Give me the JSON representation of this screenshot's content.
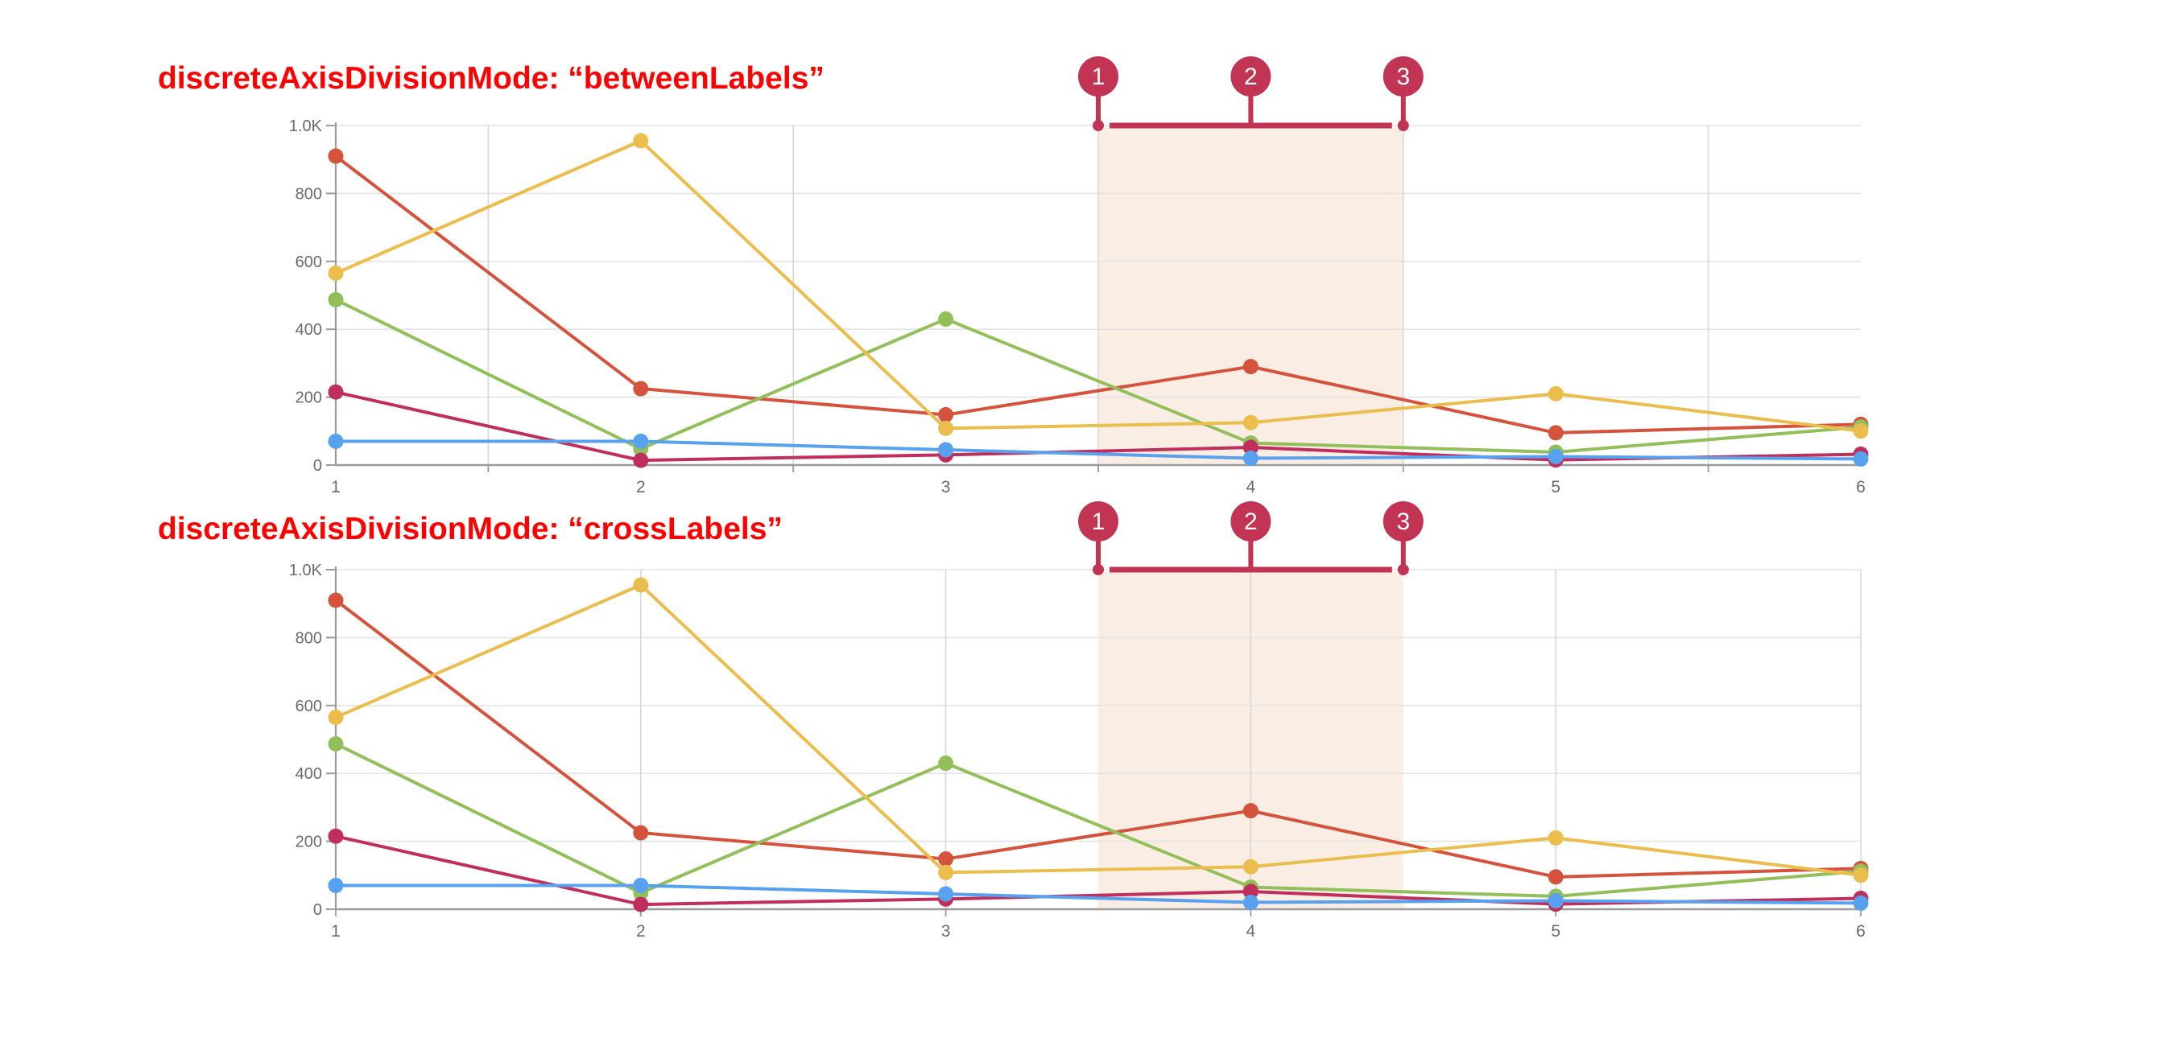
{
  "page": {
    "background": "#ffffff"
  },
  "charts": [
    {
      "key": "betweenLabels",
      "title": "discreteAxisDivisionMode: “betweenLabels”",
      "mode": "betweenLabels",
      "markers": [
        {
          "label": "1",
          "x": 3.5
        },
        {
          "label": "2",
          "x": 4
        },
        {
          "label": "3",
          "x": 4.5
        }
      ]
    },
    {
      "key": "crossLabels",
      "title": "discreteAxisDivisionMode: “crossLabels”",
      "mode": "crossLabels",
      "markers": [
        {
          "label": "1",
          "x": 3.5
        },
        {
          "label": "2",
          "x": 4
        },
        {
          "label": "3",
          "x": 4.5
        }
      ]
    }
  ],
  "chart_data": {
    "type": "line",
    "categories": [
      "1",
      "2",
      "3",
      "4",
      "5",
      "6"
    ],
    "series": [
      {
        "name": "red",
        "color": "#d5523c",
        "values": [
          910,
          225,
          148,
          290,
          95,
          120
        ]
      },
      {
        "name": "green",
        "color": "#92bf5a",
        "values": [
          487,
          48,
          430,
          65,
          38,
          112
        ]
      },
      {
        "name": "crimson",
        "color": "#c02f5b",
        "values": [
          215,
          14,
          30,
          52,
          15,
          32
        ]
      },
      {
        "name": "yellow",
        "color": "#eabd4d",
        "values": [
          565,
          955,
          108,
          125,
          210,
          100
        ]
      },
      {
        "name": "blue",
        "color": "#58a1ee",
        "values": [
          70,
          70,
          45,
          20,
          25,
          18
        ]
      }
    ],
    "title": "",
    "xlabel": "",
    "ylabel": "",
    "ylim": [
      0,
      1000
    ],
    "yticks": [
      {
        "value": 0,
        "label": "0"
      },
      {
        "value": 200,
        "label": "200"
      },
      {
        "value": 400,
        "label": "400"
      },
      {
        "value": 600,
        "label": "600"
      },
      {
        "value": 800,
        "label": "800"
      },
      {
        "value": 1000,
        "label": "1.0K"
      }
    ],
    "grid": true,
    "legend": "none",
    "highlight_band": {
      "from": 3.5,
      "to": 4.5,
      "color": "#faeee4"
    },
    "annotation_pins": {
      "labels": [
        "1",
        "2",
        "3"
      ],
      "positions": [
        3.5,
        4,
        4.5
      ],
      "color": "#c23454"
    }
  },
  "colors": {
    "title": "#fe0000",
    "band": "#faeee4",
    "marker": "#c23454",
    "grid_h": "#e4e4e4",
    "grid_v": "#d8d8d8",
    "axis": "#9b9b9b",
    "label": "#6b6b6b",
    "pin_text": "#ffffff"
  }
}
